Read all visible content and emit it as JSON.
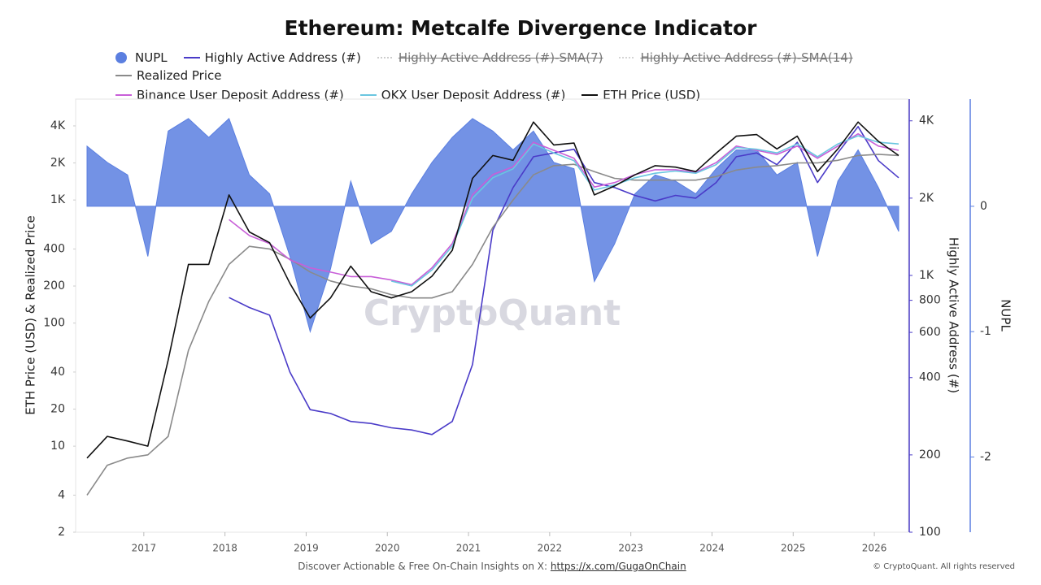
{
  "chart_data": {
    "type": "line",
    "title": "Ethereum: Metcalfe Divergence Indicator",
    "y_label": "ETH Price (USD) & Realized Price",
    "y2_label": "Highly Active Address (#)",
    "y3_label": "NUPL",
    "watermark": "CryptoQuant",
    "footer_text": "Discover Actionable & Free On-Chain Insights on X:",
    "footer_link": "https://x.com/GugaOnChain",
    "copyright": "© CryptoQuant. All rights reserved",
    "log_y": true,
    "log_y2": true,
    "x": [
      2016.3,
      2016.55,
      2016.8,
      2017.05,
      2017.3,
      2017.55,
      2017.8,
      2018.05,
      2018.3,
      2018.55,
      2018.8,
      2019.05,
      2019.3,
      2019.55,
      2019.8,
      2020.05,
      2020.3,
      2020.55,
      2020.8,
      2021.05,
      2021.3,
      2021.55,
      2021.8,
      2022.05,
      2022.3,
      2022.55,
      2022.8,
      2023.05,
      2023.3,
      2023.55,
      2023.8,
      2024.05,
      2024.3,
      2024.55,
      2024.8,
      2025.05,
      2025.3,
      2025.55,
      2025.8,
      2026.05,
      2026.3
    ],
    "xlim": [
      2016.16,
      2026.42
    ],
    "xticks": [
      2017,
      2018,
      2019,
      2020,
      2021,
      2022,
      2023,
      2024,
      2025,
      2026
    ],
    "ylim": [
      2,
      6600
    ],
    "yticks": [
      2,
      4,
      10,
      20,
      40,
      100,
      200,
      400,
      {
        "value": 1000,
        "label": "1K"
      },
      {
        "value": 2000,
        "label": "2K"
      },
      {
        "value": 4000,
        "label": "4K"
      }
    ],
    "y2lim": [
      100,
      4860
    ],
    "y2ticks": [
      100,
      200,
      400,
      600,
      800,
      {
        "value": 1000,
        "label": "1K"
      },
      {
        "value": 2000,
        "label": "2K"
      },
      {
        "value": 4000,
        "label": "4K"
      }
    ],
    "y3lim": [
      -2.6,
      0.855
    ],
    "y3ticks": [
      0,
      -1,
      -2
    ],
    "series": [
      {
        "name": "NUPL",
        "color": "#5b7fe0",
        "axis": "y3",
        "kind": "area",
        "values": [
          0.48,
          0.35,
          0.25,
          -0.4,
          0.6,
          0.7,
          0.55,
          0.7,
          0.25,
          0.1,
          -0.4,
          -1.0,
          -0.5,
          0.2,
          -0.3,
          -0.2,
          0.1,
          0.35,
          0.55,
          0.7,
          0.6,
          0.45,
          0.6,
          0.35,
          0.3,
          -0.6,
          -0.3,
          0.1,
          0.25,
          0.2,
          0.1,
          0.3,
          0.45,
          0.45,
          0.25,
          0.35,
          -0.4,
          0.2,
          0.45,
          0.15,
          -0.2
        ]
      },
      {
        "name": "Highly Active Address (#)",
        "color": "#4a3bc8",
        "axis": "y2",
        "values": [
          null,
          null,
          null,
          null,
          null,
          null,
          null,
          820,
          750,
          700,
          420,
          300,
          290,
          270,
          265,
          255,
          250,
          240,
          270,
          450,
          1500,
          2200,
          2900,
          3000,
          3100,
          2300,
          2200,
          2050,
          1950,
          2050,
          2000,
          2300,
          2900,
          3000,
          2700,
          3300,
          2300,
          3000,
          3800,
          2800,
          2400
        ]
      },
      {
        "name": "Highly Active Address (#)-SMA(7)",
        "color": "#999999",
        "hidden": true
      },
      {
        "name": "Highly Active Address (#)-SMA(14)",
        "color": "#aaaaaa",
        "hidden": true
      },
      {
        "name": "Realized Price",
        "color": "#8a8a8a",
        "axis": "y",
        "values": [
          4,
          7,
          8,
          8.5,
          12,
          60,
          150,
          300,
          420,
          400,
          330,
          260,
          220,
          200,
          190,
          170,
          160,
          160,
          180,
          300,
          600,
          1000,
          1600,
          1900,
          1950,
          1700,
          1500,
          1450,
          1450,
          1450,
          1450,
          1550,
          1750,
          1850,
          1900,
          2000,
          2000,
          2100,
          2300,
          2350,
          2300
        ]
      },
      {
        "name": "Binance User Deposit Address (#)",
        "color": "#c85fd8",
        "axis": "y2",
        "values": [
          null,
          null,
          null,
          null,
          null,
          null,
          null,
          1650,
          1430,
          1330,
          1150,
          1070,
          1030,
          990,
          990,
          960,
          920,
          1070,
          1330,
          2060,
          2470,
          2650,
          3300,
          3070,
          2860,
          2210,
          2300,
          2470,
          2580,
          2580,
          2520,
          2750,
          3190,
          3070,
          2960,
          3190,
          2860,
          3190,
          3560,
          3190,
          3070
        ]
      },
      {
        "name": "OKX User Deposit Address (#)",
        "color": "#6ac6e0",
        "axis": "y2",
        "values": [
          null,
          null,
          null,
          null,
          null,
          null,
          null,
          null,
          null,
          null,
          null,
          null,
          null,
          null,
          null,
          950,
          910,
          1050,
          1300,
          2000,
          2400,
          2600,
          3250,
          3000,
          2800,
          2150,
          2250,
          2400,
          2500,
          2550,
          2500,
          2700,
          3150,
          3100,
          3000,
          3250,
          2900,
          3250,
          3500,
          3300,
          3250
        ]
      },
      {
        "name": "ETH Price (USD)",
        "color": "#111111",
        "axis": "y",
        "values": [
          8,
          12,
          11,
          10,
          50,
          300,
          300,
          1100,
          550,
          450,
          210,
          110,
          160,
          290,
          180,
          160,
          180,
          240,
          390,
          1500,
          2300,
          2100,
          4300,
          2800,
          2900,
          1100,
          1300,
          1600,
          1900,
          1850,
          1700,
          2400,
          3300,
          3400,
          2600,
          3300,
          1700,
          2600,
          4300,
          3000,
          2300
        ]
      }
    ]
  }
}
